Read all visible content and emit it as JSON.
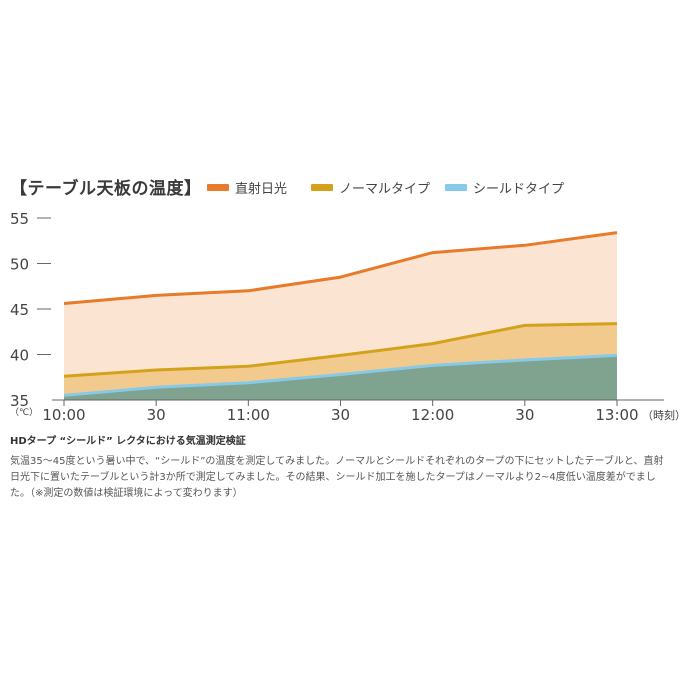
{
  "chart_data": {
    "type": "area",
    "title": "【テーブル天板の温度】",
    "y_unit_label": "（℃）",
    "x_unit_label": "（時刻）",
    "categories": [
      "10:00",
      "30",
      "11:00",
      "30",
      "12:00",
      "30",
      "13:00"
    ],
    "x": [
      0,
      0.5,
      1,
      1.5,
      2,
      2.5,
      3
    ],
    "yticks": [
      35,
      40,
      45,
      50,
      55
    ],
    "ylim": [
      35,
      55
    ],
    "grid": false,
    "legend_position": "top",
    "series": [
      {
        "name": "直射日光",
        "color": "#e87a2b",
        "fill": "#fbe4d2",
        "points": [
          [
            0,
            45.6
          ],
          [
            0.5,
            46.5
          ],
          [
            1,
            47.0
          ],
          [
            1.5,
            48.5
          ],
          [
            2,
            51.2
          ],
          [
            2.5,
            52.0
          ],
          [
            3,
            53.4
          ]
        ]
      },
      {
        "name": "ノーマルタイプ",
        "color": "#d4a21a",
        "fill": "#f2ca8e",
        "points": [
          [
            0,
            37.6
          ],
          [
            0.5,
            38.3
          ],
          [
            1,
            38.7
          ],
          [
            1.5,
            39.9
          ],
          [
            2,
            41.2
          ],
          [
            2.5,
            43.2
          ],
          [
            3,
            43.4
          ]
        ]
      },
      {
        "name": "シールドタイプ",
        "color": "#86c9e8",
        "fill": "#7fa38f",
        "points": [
          [
            0,
            35.5
          ],
          [
            0.5,
            36.4
          ],
          [
            1,
            36.9
          ],
          [
            1.5,
            37.8
          ],
          [
            2,
            38.8
          ],
          [
            2.5,
            39.4
          ],
          [
            3,
            39.9
          ]
        ]
      }
    ]
  },
  "caption": "HDタープ “シールド” レクタにおける気温測定検証",
  "description": "気温35～45度という暑い中で、“シールド”の温度を測定してみました。ノーマルとシールドそれぞれのタープの下にセットしたテーブルと、直射日光下に置いたテーブルという計3か所で測定してみました。その結果、シールド加工を施したタープはノーマルより2~4度低い温度差がでました。（※測定の数値は検証環境によって変わります）"
}
